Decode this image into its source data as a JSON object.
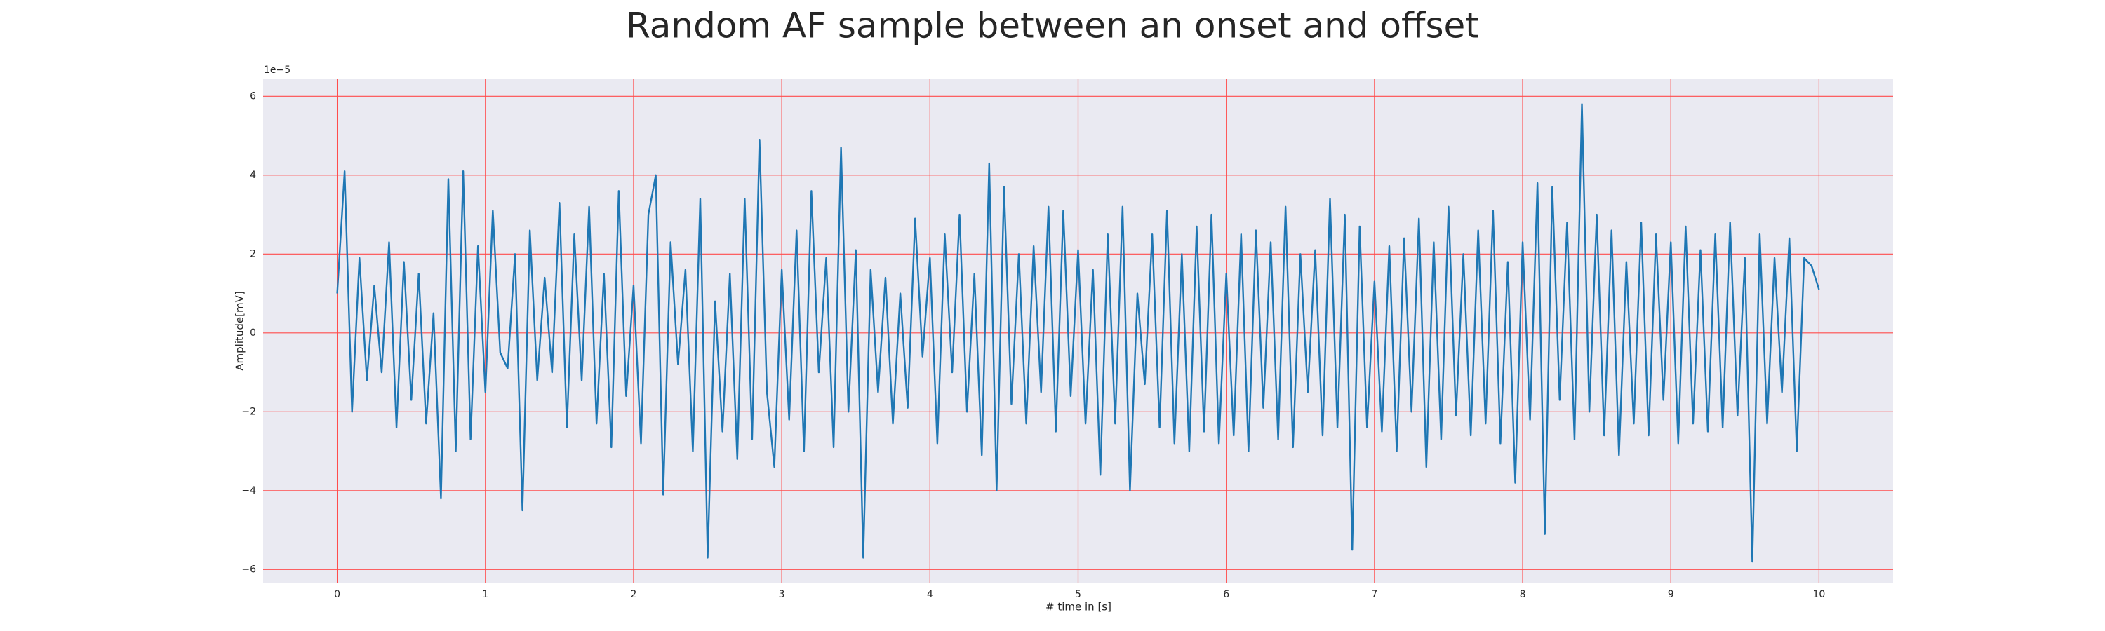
{
  "chart_data": {
    "type": "line",
    "title": "Random AF sample between an onset and offset",
    "x_label": "# time in [s]",
    "y_label": "Amplitude[mV]",
    "y_offset_label": "1e−5",
    "xlim": [
      -0.5,
      10.5
    ],
    "ylim": [
      -6.35,
      6.45
    ],
    "xticks": [
      0,
      1,
      2,
      3,
      4,
      5,
      6,
      7,
      8,
      9,
      10
    ],
    "yticks": [
      {
        "value": -6,
        "label": "−6"
      },
      {
        "value": -4,
        "label": "−4"
      },
      {
        "value": -2,
        "label": "−2"
      },
      0,
      2,
      4,
      6
    ],
    "grid": true,
    "grid_color": "#ff4d4d",
    "background": "#eaeaf2",
    "x": [
      0,
      0.05,
      0.1,
      0.15,
      0.2,
      0.25,
      0.3,
      0.35,
      0.4,
      0.45,
      0.5,
      0.55,
      0.6,
      0.65,
      0.7,
      0.75,
      0.8,
      0.85,
      0.9,
      0.95,
      1,
      1.05,
      1.1,
      1.15,
      1.2,
      1.25,
      1.3,
      1.35,
      1.4,
      1.45,
      1.5,
      1.55,
      1.6,
      1.65,
      1.7,
      1.75,
      1.8,
      1.85,
      1.9,
      1.95,
      2,
      2.05,
      2.1,
      2.15,
      2.2,
      2.25,
      2.3,
      2.35,
      2.4,
      2.45,
      2.5,
      2.55,
      2.6,
      2.65,
      2.7,
      2.75,
      2.8,
      2.85,
      2.9,
      2.95,
      3,
      3.05,
      3.1,
      3.15,
      3.2,
      3.25,
      3.3,
      3.35,
      3.4,
      3.45,
      3.5,
      3.55,
      3.6,
      3.65,
      3.7,
      3.75,
      3.8,
      3.85,
      3.9,
      3.95,
      4,
      4.05,
      4.1,
      4.15,
      4.2,
      4.25,
      4.3,
      4.35,
      4.4,
      4.45,
      4.5,
      4.55,
      4.6,
      4.65,
      4.7,
      4.75,
      4.8,
      4.85,
      4.9,
      4.95,
      5,
      5.05,
      5.1,
      5.15,
      5.2,
      5.25,
      5.3,
      5.35,
      5.4,
      5.45,
      5.5,
      5.55,
      5.6,
      5.65,
      5.7,
      5.75,
      5.8,
      5.85,
      5.9,
      5.95,
      6,
      6.05,
      6.1,
      6.15,
      6.2,
      6.25,
      6.3,
      6.35,
      6.4,
      6.45,
      6.5,
      6.55,
      6.6,
      6.65,
      6.7,
      6.75,
      6.8,
      6.85,
      6.9,
      6.95,
      7,
      7.05,
      7.1,
      7.15,
      7.2,
      7.25,
      7.3,
      7.35,
      7.4,
      7.45,
      7.5,
      7.55,
      7.6,
      7.65,
      7.7,
      7.75,
      7.8,
      7.85,
      7.9,
      7.95,
      8,
      8.05,
      8.1,
      8.15,
      8.2,
      8.25,
      8.3,
      8.35,
      8.4,
      8.45,
      8.5,
      8.55,
      8.6,
      8.65,
      8.7,
      8.75,
      8.8,
      8.85,
      8.9,
      8.95,
      9,
      9.05,
      9.1,
      9.15,
      9.2,
      9.25,
      9.3,
      9.35,
      9.4,
      9.45,
      9.5,
      9.55,
      9.6,
      9.65,
      9.7,
      9.75,
      9.8,
      9.85,
      9.9,
      9.95,
      10
    ],
    "series": [
      {
        "color": "#1f77b4",
        "values": [
          1.0,
          4.1,
          -2.0,
          1.9,
          -1.2,
          1.2,
          -1.0,
          2.3,
          -2.4,
          1.8,
          -1.7,
          1.5,
          -2.3,
          0.5,
          -4.2,
          3.9,
          -3.0,
          4.1,
          -2.7,
          2.2,
          -1.5,
          3.1,
          -0.5,
          -0.9,
          2.0,
          -4.5,
          2.6,
          -1.2,
          1.4,
          -1.0,
          3.3,
          -2.4,
          2.5,
          -1.2,
          3.2,
          -2.3,
          1.5,
          -2.9,
          3.6,
          -1.6,
          1.2,
          -2.8,
          3.0,
          4.0,
          -4.1,
          2.3,
          -0.8,
          1.6,
          -3.0,
          3.4,
          -5.7,
          0.8,
          -2.5,
          1.5,
          -3.2,
          3.4,
          -2.7,
          4.9,
          -1.5,
          -3.4,
          1.6,
          -2.2,
          2.6,
          -3.0,
          3.6,
          -1.0,
          1.9,
          -2.9,
          4.7,
          -2.0,
          2.1,
          -5.7,
          1.6,
          -1.5,
          1.4,
          -2.3,
          1.0,
          -1.9,
          2.9,
          -0.6,
          1.9,
          -2.8,
          2.5,
          -1.0,
          3.0,
          -2.0,
          1.5,
          -3.1,
          4.3,
          -4.0,
          3.7,
          -1.8,
          2.0,
          -2.3,
          2.2,
          -1.5,
          3.2,
          -2.5,
          3.1,
          -1.6,
          2.1,
          -2.3,
          1.6,
          -3.6,
          2.5,
          -2.3,
          3.2,
          -4.0,
          1.0,
          -1.3,
          2.5,
          -2.4,
          3.1,
          -2.8,
          2.0,
          -3.0,
          2.7,
          -2.5,
          3.0,
          -2.8,
          1.5,
          -2.6,
          2.5,
          -3.0,
          2.6,
          -1.9,
          2.3,
          -2.7,
          3.2,
          -2.9,
          2.0,
          -1.5,
          2.1,
          -2.6,
          3.4,
          -2.4,
          3.0,
          -5.5,
          2.7,
          -2.4,
          1.3,
          -2.5,
          2.2,
          -3.0,
          2.4,
          -2.0,
          2.9,
          -3.4,
          2.3,
          -2.7,
          3.2,
          -2.1,
          2.0,
          -2.6,
          2.6,
          -2.3,
          3.1,
          -2.8,
          1.8,
          -3.8,
          2.3,
          -2.2,
          3.8,
          -5.1,
          3.7,
          -1.7,
          2.8,
          -2.7,
          5.8,
          -2.0,
          3.0,
          -2.6,
          2.6,
          -3.1,
          1.8,
          -2.3,
          2.8,
          -2.6,
          2.5,
          -1.7,
          2.3,
          -2.8,
          2.7,
          -2.3,
          2.1,
          -2.5,
          2.5,
          -2.4,
          2.8,
          -2.1,
          1.9,
          -5.8,
          2.5,
          -2.3,
          1.9,
          -1.5,
          2.4,
          -3.0,
          1.9,
          1.7,
          1.1
        ]
      }
    ]
  }
}
